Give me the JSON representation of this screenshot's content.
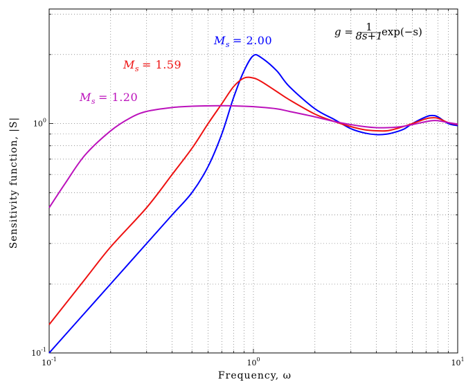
{
  "chart_data": {
    "type": "line",
    "xscale": "log",
    "yscale": "log",
    "xlim": [
      0.1,
      10
    ],
    "ylim": [
      0.1,
      3.16
    ],
    "grid": true,
    "xlabel": "Frequency, ω",
    "ylabel": "Sensitivity function, |S|",
    "x_ticks": [
      {
        "value": 0.1,
        "base": "10",
        "exp": "-1"
      },
      {
        "value": 1,
        "base": "10",
        "exp": "0"
      },
      {
        "value": 10,
        "base": "10",
        "exp": "1"
      }
    ],
    "y_ticks": [
      {
        "value": 0.1,
        "base": "10",
        "exp": "-1"
      },
      {
        "value": 1,
        "base": "10",
        "exp": "0"
      }
    ],
    "annotation": {
      "lhs": "g = ",
      "num": "1",
      "den": "8s+1",
      "rhs": "exp(−s)"
    },
    "series": [
      {
        "name": "M_s = 2.00",
        "label_text": "= 2.00",
        "color": "#0000ff",
        "x": [
          0.1,
          0.15,
          0.2,
          0.3,
          0.4,
          0.5,
          0.6,
          0.7,
          0.8,
          0.9,
          1.0,
          1.1,
          1.3,
          1.5,
          2.0,
          2.5,
          3.0,
          3.5,
          4.0,
          4.5,
          5.0,
          5.5,
          6.0,
          7.0,
          7.5,
          8.0,
          9.0,
          10.0
        ],
        "y": [
          0.1,
          0.15,
          0.2,
          0.3,
          0.4,
          0.5,
          0.65,
          0.9,
          1.3,
          1.7,
          1.98,
          1.93,
          1.7,
          1.45,
          1.16,
          1.04,
          0.95,
          0.91,
          0.895,
          0.9,
          0.92,
          0.95,
          1.0,
          1.07,
          1.085,
          1.07,
          1.0,
          0.98
        ]
      },
      {
        "name": "M_s = 1.59",
        "label_text": "= 1.59",
        "color": "#ee1111",
        "x": [
          0.1,
          0.15,
          0.2,
          0.3,
          0.4,
          0.5,
          0.6,
          0.7,
          0.8,
          0.9,
          1.0,
          1.1,
          1.3,
          1.5,
          2.0,
          2.5,
          3.0,
          3.5,
          4.0,
          4.5,
          5.0,
          5.5,
          6.0,
          7.0,
          7.5,
          8.0,
          9.0,
          10.0
        ],
        "y": [
          0.133,
          0.21,
          0.29,
          0.43,
          0.6,
          0.78,
          1.0,
          1.22,
          1.45,
          1.58,
          1.58,
          1.52,
          1.38,
          1.27,
          1.1,
          1.02,
          0.97,
          0.94,
          0.93,
          0.93,
          0.95,
          0.975,
          1.0,
          1.05,
          1.06,
          1.055,
          1.01,
          0.99
        ]
      },
      {
        "name": "M_s = 1.20",
        "label_text": "= 1.20",
        "color": "#bb11bb",
        "x": [
          0.1,
          0.12,
          0.15,
          0.2,
          0.25,
          0.3,
          0.4,
          0.5,
          0.6,
          0.7,
          0.8,
          1.0,
          1.3,
          1.5,
          2.0,
          2.5,
          3.0,
          3.5,
          4.0,
          4.5,
          5.0,
          5.5,
          6.0,
          7.0,
          7.5,
          8.0,
          9.0,
          10.0
        ],
        "y": [
          0.43,
          0.55,
          0.73,
          0.93,
          1.06,
          1.13,
          1.175,
          1.19,
          1.195,
          1.197,
          1.195,
          1.185,
          1.16,
          1.13,
          1.07,
          1.02,
          0.99,
          0.97,
          0.96,
          0.96,
          0.965,
          0.975,
          0.99,
          1.02,
          1.03,
          1.03,
          1.01,
          0.995
        ]
      }
    ]
  }
}
